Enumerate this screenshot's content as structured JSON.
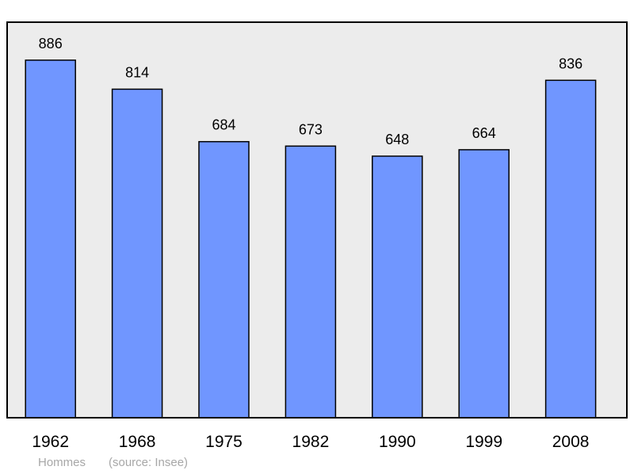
{
  "caption": {
    "series_label": "Hommes",
    "source_label": "(source: Insee)"
  },
  "colors": {
    "plot_background": "#ececec",
    "bar_fill": "#7096ff",
    "bar_stroke": "#000000",
    "frame": "#000000"
  },
  "chart_data": {
    "type": "bar",
    "categories": [
      "1962",
      "1968",
      "1975",
      "1982",
      "1990",
      "1999",
      "2008"
    ],
    "values": [
      886,
      814,
      684,
      673,
      648,
      664,
      836
    ],
    "value_labels": [
      "886",
      "814",
      "684",
      "673",
      "648",
      "664",
      "836"
    ],
    "title": "",
    "xlabel": "",
    "ylabel": "",
    "ylim": [
      0,
      980
    ],
    "grid": false,
    "legend": "none"
  }
}
